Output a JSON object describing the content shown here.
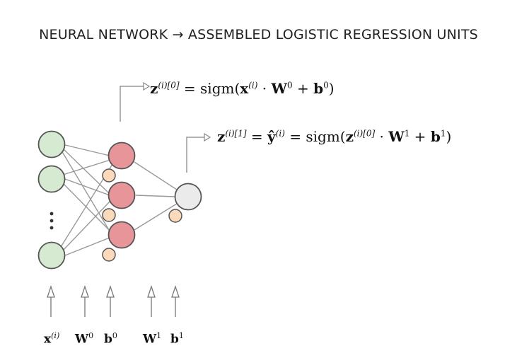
{
  "title": "NEURAL NETWORK → ASSEMBLED LOGISTIC REGRESSION UNITS",
  "equations": {
    "layer0": {
      "lhs_var": "z",
      "lhs_sup": "(i)[0]",
      "eq": " = sigm(",
      "x_var": "x",
      "x_sup": "(i)",
      "dot": " · ",
      "w_var": "W",
      "w_sup": "0",
      "plus": " + ",
      "b_var": "b",
      "b_sup": "0",
      "close": ")"
    },
    "layer1": {
      "lhs_var": "z",
      "lhs_sup": "(i)[1]",
      "eq1": " = ",
      "yhat_var": "ŷ",
      "yhat_sup": "(i)",
      "eq2": " = sigm(",
      "z_var": "z",
      "z_sup": "(i)[0]",
      "dot": " · ",
      "w_var": "W",
      "w_sup": "1",
      "plus": " + ",
      "b_var": "b",
      "b_sup": "1",
      "close": ")"
    }
  },
  "input_labels": [
    {
      "var": "x",
      "sup": "(i)"
    },
    {
      "var": "W",
      "sup": "0"
    },
    {
      "var": "b",
      "sup": "0"
    },
    {
      "var": "W",
      "sup": "1"
    },
    {
      "var": "b",
      "sup": "1"
    }
  ],
  "colors": {
    "input_node": "#d5ead0",
    "hidden_node": "#e8959a",
    "output_node": "#ebebeb",
    "bias_node": "#fbd9bb",
    "edge": "#999999",
    "outline": "#555555"
  }
}
